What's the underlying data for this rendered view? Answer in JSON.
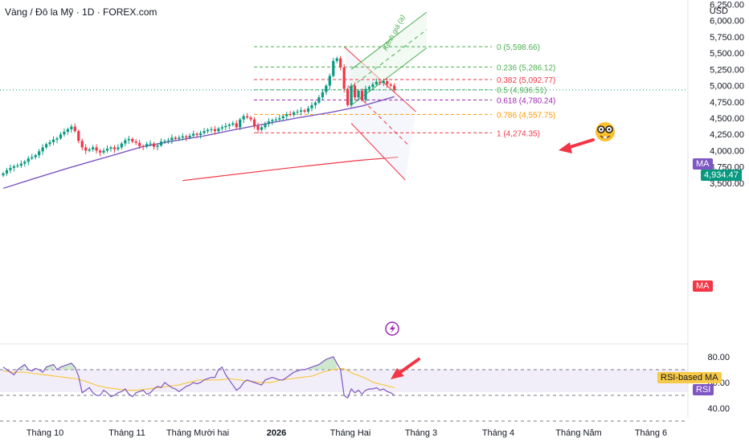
{
  "header": {
    "title": "Vàng / Đô la Mỹ · 1D · FOREX.com",
    "currency": "USD"
  },
  "price_axis": {
    "ticks": [
      "6,250.00",
      "6,000.00",
      "5,750.00",
      "5,500.00",
      "5,250.00",
      "5,000.00",
      "4,750.00",
      "4,500.00",
      "4,250.00",
      "4,000.00",
      "3,750.00",
      "3,500.00"
    ],
    "last_price": "4,934.47"
  },
  "rsi_axis": {
    "ticks": [
      "80.00",
      "60.00",
      "40.00"
    ]
  },
  "time_axis": {
    "labels": [
      "Tháng 10",
      "Tháng 11",
      "Tháng Mười hai",
      "2026",
      "Tháng Hai",
      "Tháng 3",
      "Tháng 4",
      "Tháng Năm",
      "Tháng 6"
    ]
  },
  "tags": {
    "ma_main": "MA",
    "ma_red": "MA",
    "rsi_based_ma": "RSI-based MA",
    "rsi": "RSI"
  },
  "fib_levels": [
    {
      "label": "0 (5,598.66)",
      "value": 5598.66,
      "color": "#4caf50"
    },
    {
      "label": "0.236 (5,286.12)",
      "value": 5286.12,
      "color": "#4caf50"
    },
    {
      "label": "0.382 (5,092.77)",
      "value": 5092.77,
      "color": "#f23645"
    },
    {
      "label": "0.5 (4,936.51)",
      "value": 4936.51,
      "color": "#4caf50"
    },
    {
      "label": "0.618 (4,780.24)",
      "value": 4780.24,
      "color": "#9c27b0"
    },
    {
      "label": "0.786 (4,557.75)",
      "value": 4557.75,
      "color": "#ff9800"
    },
    {
      "label": "1 (4,274.35)",
      "value": 4274.35,
      "color": "#f23645"
    }
  ],
  "channel_label": "Kênh giá (a)",
  "colors": {
    "up": "#089981",
    "down": "#f23645",
    "ma_purple": "#7e57c2",
    "ma_red": "#f23645",
    "rsi_line": "#7e57c2",
    "rsi_ma": "#f7c948",
    "last_price_bg": "#089981"
  },
  "chart_data": {
    "type": "candlestick",
    "symbol": "XAUUSD",
    "interval": "1D",
    "y_range": [
      3350,
      6350
    ],
    "closes": [
      3650,
      3700,
      3735,
      3760,
      3770,
      3800,
      3830,
      3880,
      3900,
      3930,
      3990,
      4050,
      4100,
      4130,
      4170,
      4190,
      4250,
      4290,
      4330,
      4370,
      4300,
      4150,
      4050,
      4000,
      4020,
      4050,
      4000,
      3970,
      4000,
      4030,
      4050,
      4020,
      4050,
      4110,
      4160,
      4180,
      4140,
      4120,
      4070,
      4060,
      4100,
      4110,
      4060,
      4080,
      4140,
      4150,
      4160,
      4200,
      4180,
      4200,
      4220,
      4200,
      4230,
      4260,
      4240,
      4270,
      4300,
      4320,
      4330,
      4300,
      4340,
      4360,
      4380,
      4400,
      4420,
      4360,
      4480,
      4530,
      4510,
      4480,
      4380,
      4320,
      4360,
      4410,
      4450,
      4470,
      4480,
      4500,
      4530,
      4560,
      4550,
      4590,
      4600,
      4620,
      4600,
      4650,
      4700,
      4740,
      4820,
      4900,
      5000,
      5150,
      5380,
      5420,
      5280,
      4950,
      4700,
      5000,
      4820,
      4920,
      4780,
      4950,
      4980,
      5020,
      5060,
      5040,
      5070,
      5020,
      5000,
      4934
    ],
    "ma_purple": {
      "start_index": 30,
      "values": [
        3920,
        4060,
        4150,
        4230,
        4330,
        4420,
        4510,
        4590,
        4690,
        4830
      ]
    },
    "ma_red": {
      "points": [
        [
          50,
          3540
        ],
        [
          79,
          3730
        ],
        [
          99,
          3850
        ],
        [
          110,
          3900
        ]
      ]
    },
    "rsi": {
      "values": [
        72,
        70,
        68,
        66,
        70,
        72,
        74,
        70,
        69,
        71,
        70,
        68,
        72,
        73,
        74,
        70,
        72,
        73,
        74,
        75,
        72,
        65,
        52,
        54,
        56,
        52,
        50,
        50,
        54,
        52,
        49,
        50,
        52,
        53,
        55,
        51,
        49,
        52,
        53,
        54,
        51,
        52,
        55,
        57,
        56,
        60,
        58,
        56,
        55,
        53,
        55,
        57,
        58,
        60,
        59,
        60,
        62,
        63,
        64,
        64,
        70,
        72,
        66,
        62,
        58,
        54,
        56,
        60,
        62,
        61,
        60,
        59,
        58,
        62,
        63,
        64,
        63,
        62,
        62,
        64,
        66,
        68,
        69,
        70,
        70,
        71,
        72,
        73,
        74,
        76,
        78,
        79,
        80,
        75,
        70,
        50,
        48,
        55,
        52,
        54,
        51,
        54,
        55,
        55,
        56,
        54,
        55,
        53,
        52,
        50
      ],
      "ma_values": [
        69,
        68,
        68,
        67,
        66,
        65,
        64,
        63,
        61,
        58,
        56,
        55,
        54,
        54,
        55,
        56,
        57,
        58,
        60,
        62,
        62,
        62,
        63,
        62,
        61,
        60,
        60,
        62,
        63,
        64,
        65,
        68,
        70,
        71,
        67,
        64,
        60,
        58,
        56
      ],
      "levels": [
        70,
        50,
        30
      ],
      "range": [
        20,
        90
      ]
    }
  }
}
